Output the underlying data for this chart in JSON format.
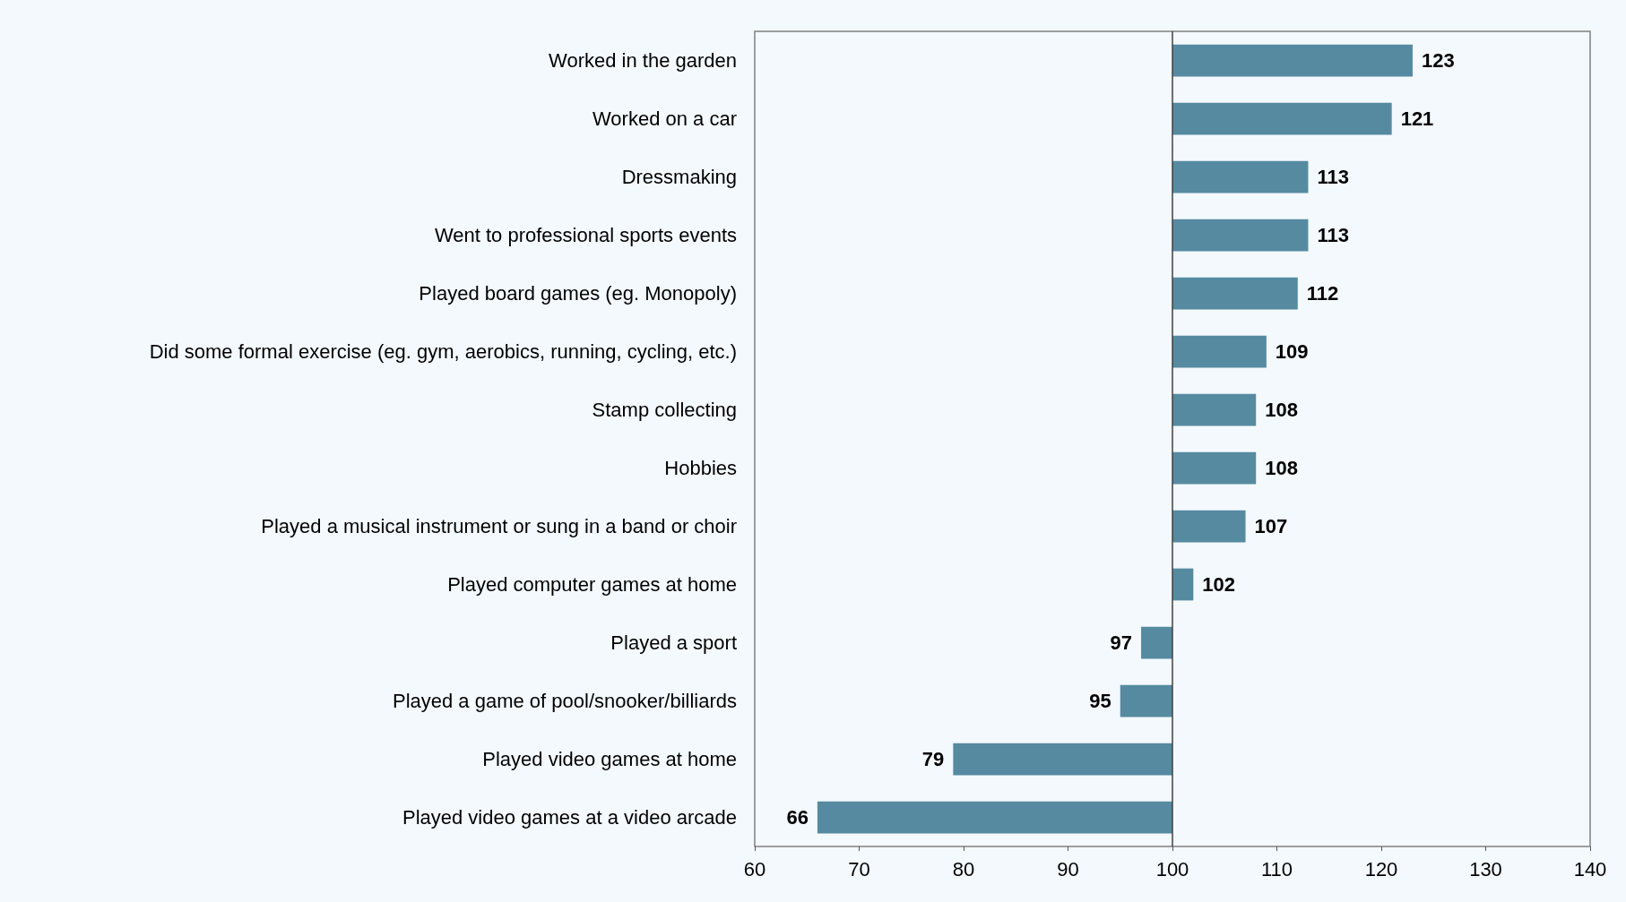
{
  "chart_data": {
    "type": "bar",
    "orientation": "horizontal",
    "categories": [
      "Worked in the garden",
      "Worked on a car",
      "Dressmaking",
      "Went to professional sports events",
      "Played board games (eg. Monopoly)",
      "Did some formal exercise (eg. gym, aerobics, running, cycling, etc.)",
      "Stamp collecting",
      "Hobbies",
      "Played a musical instrument or sung in a band or choir",
      "Played computer games at home",
      "Played a sport",
      "Played a game of pool/snooker/billiards",
      "Played video games at home",
      "Played video games at a video arcade"
    ],
    "base": [
      100,
      100,
      100,
      100,
      100,
      100,
      100,
      100,
      100,
      100,
      100,
      100,
      100,
      100
    ],
    "values": [
      23,
      21,
      13,
      13,
      12,
      9,
      8,
      8,
      7,
      2,
      -3,
      -5,
      -21,
      -34
    ],
    "value_labels": [
      "123",
      "121",
      "113",
      "113",
      "112",
      "109",
      "108",
      "108",
      "107",
      "102",
      "97",
      "95",
      "79",
      "66"
    ],
    "color": "#568aa0",
    "xlim": [
      60,
      140
    ],
    "xticks": [
      60,
      70,
      80,
      90,
      100,
      110,
      120,
      130,
      140
    ],
    "ref_lines": [
      {
        "axis": "x",
        "value": 100,
        "color": "#404040"
      }
    ],
    "grid": false
  }
}
